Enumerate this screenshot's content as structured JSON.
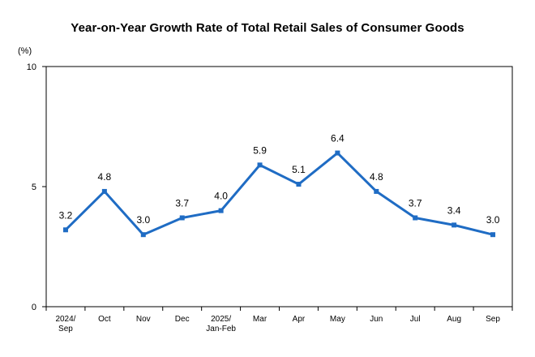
{
  "chart_data": {
    "type": "line",
    "title": "Year-on-Year Growth Rate of Total Retail Sales of Consumer Goods",
    "ylabel": "(%)",
    "xlabel": "",
    "ylim": [
      0,
      10
    ],
    "yticks": [
      "0",
      "5",
      "10"
    ],
    "grid": false,
    "legend": "none",
    "categories": [
      [
        "2024/",
        "Sep"
      ],
      [
        "Oct"
      ],
      [
        "Nov"
      ],
      [
        "Dec"
      ],
      [
        "2025/",
        "Jan-Feb"
      ],
      [
        "Mar"
      ],
      [
        "Apr"
      ],
      [
        "May"
      ],
      [
        "Jun"
      ],
      [
        "Jul"
      ],
      [
        "Aug"
      ],
      [
        "Sep"
      ]
    ],
    "series": [
      {
        "name": "Growth rate",
        "color": "#1f6cc4",
        "values": [
          3.2,
          4.8,
          3.0,
          3.7,
          4.0,
          5.9,
          5.1,
          6.4,
          4.8,
          3.7,
          3.4,
          3.0
        ],
        "labels": [
          "3.2",
          "4.8",
          "3.0",
          "3.7",
          "4.0",
          "5.9",
          "5.1",
          "6.4",
          "4.8",
          "3.7",
          "3.4",
          "3.0"
        ]
      }
    ]
  }
}
